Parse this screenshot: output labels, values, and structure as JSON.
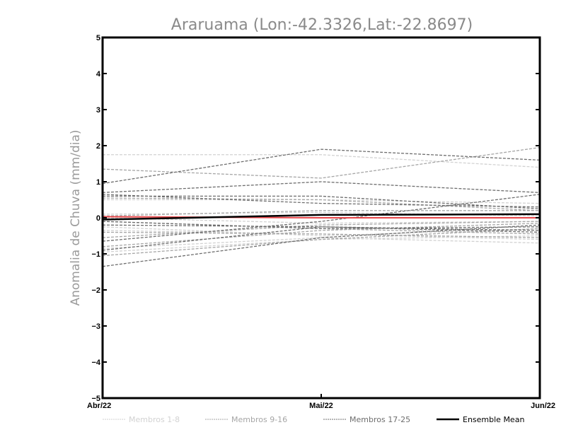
{
  "chart_data": {
    "type": "line",
    "title": "Araruama (Lon:-42.3326,Lat:-22.8697)",
    "xlabel": "",
    "ylabel": "Anomalia de Chuva (mm/dia)",
    "categories": [
      "Abr/22",
      "Mai/22",
      "Jun/22"
    ],
    "ylim": [
      -5,
      5
    ],
    "yticks": [
      "-5",
      "-4",
      "-3",
      "-2",
      "-1",
      "0",
      "1",
      "2",
      "3",
      "4",
      "5"
    ],
    "grid": false,
    "legend_position": "bottom",
    "groups": [
      {
        "name": "Membros 1-8",
        "color": "#d2d2d2",
        "series": [
          [
            1.75,
            1.75,
            1.4
          ],
          [
            0.5,
            0.5,
            0.4
          ],
          [
            0.1,
            0.15,
            0.05
          ],
          [
            -0.35,
            -0.45,
            -0.6
          ],
          [
            -0.85,
            -0.55,
            -0.7
          ],
          [
            -0.25,
            -0.5,
            -0.3
          ],
          [
            -0.95,
            -0.6,
            -0.5
          ],
          [
            0.0,
            -0.15,
            -0.1
          ]
        ]
      },
      {
        "name": "Membros 9-16",
        "color": "#a6a6a6",
        "series": [
          [
            1.35,
            1.1,
            1.95
          ],
          [
            0.55,
            0.5,
            0.2
          ],
          [
            -0.55,
            -0.2,
            -0.1
          ],
          [
            -0.8,
            -0.35,
            -0.15
          ],
          [
            0.05,
            0.2,
            0.2
          ],
          [
            -0.1,
            -0.3,
            -0.45
          ],
          [
            -1.05,
            -0.6,
            -0.3
          ],
          [
            -0.4,
            -0.45,
            -0.55
          ]
        ]
      },
      {
        "name": "Membros 17-25",
        "color": "#6e6e6e",
        "series": [
          [
            0.95,
            1.9,
            1.6
          ],
          [
            0.7,
            1.0,
            0.7
          ],
          [
            0.6,
            0.6,
            0.25
          ],
          [
            -1.35,
            -0.55,
            -0.2
          ],
          [
            -0.65,
            -0.1,
            0.65
          ],
          [
            -0.9,
            -0.25,
            -0.4
          ],
          [
            -0.1,
            -0.3,
            -0.25
          ],
          [
            -0.2,
            -0.25,
            -0.35
          ],
          [
            0.65,
            0.4,
            0.3
          ]
        ]
      }
    ],
    "ensemble_mean": {
      "name": "Ensemble Mean",
      "color": "#000000",
      "values": [
        -0.05,
        0.08,
        0.1
      ]
    },
    "reference_line": {
      "color": "#e8474a",
      "values": [
        0.03,
        0.0,
        0.0
      ]
    }
  }
}
